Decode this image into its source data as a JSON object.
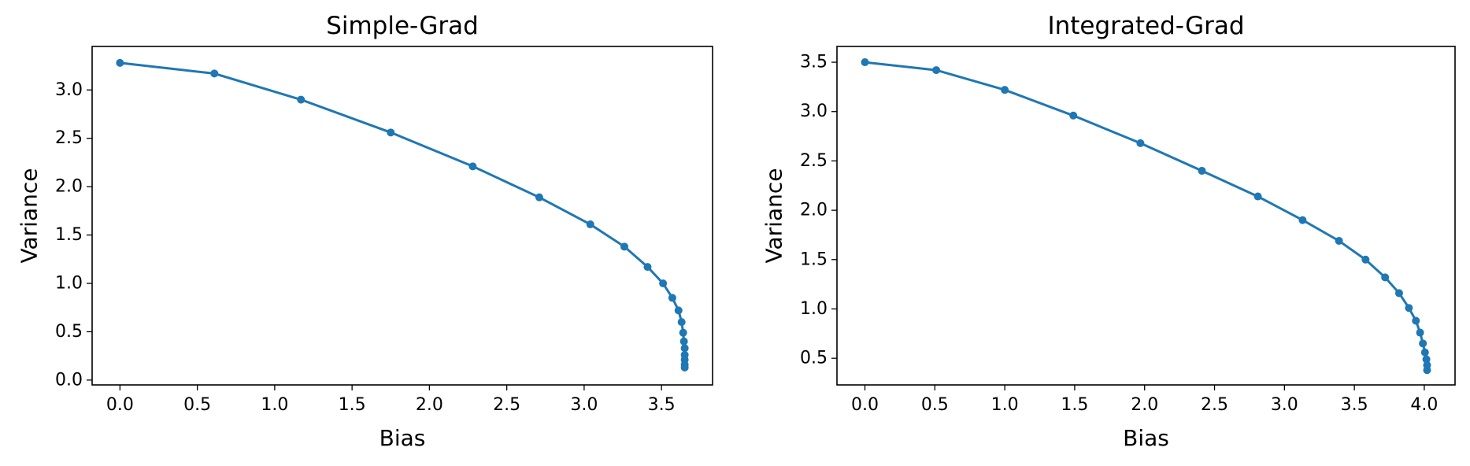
{
  "chart_data": [
    {
      "type": "line",
      "title": "Simple-Grad",
      "xlabel": "Bias",
      "ylabel": "Variance",
      "xlim": [
        -0.18,
        3.83
      ],
      "ylim": [
        -0.05,
        3.45
      ],
      "xticks": [
        0.0,
        0.5,
        1.0,
        1.5,
        2.0,
        2.5,
        3.0,
        3.5
      ],
      "xtick_labels": [
        "0.0",
        "0.5",
        "1.0",
        "1.5",
        "2.0",
        "2.5",
        "3.0",
        "3.5"
      ],
      "yticks": [
        0.0,
        0.5,
        1.0,
        1.5,
        2.0,
        2.5,
        3.0
      ],
      "ytick_labels": [
        "0.0",
        "0.5",
        "1.0",
        "1.5",
        "2.0",
        "2.5",
        "3.0"
      ],
      "grid": false,
      "color": "#1f77b4",
      "x": [
        0.0,
        0.61,
        1.17,
        1.75,
        2.28,
        2.71,
        3.04,
        3.26,
        3.41,
        3.51,
        3.57,
        3.61,
        3.63,
        3.64,
        3.645,
        3.65,
        3.65,
        3.65,
        3.65,
        3.65
      ],
      "y": [
        3.28,
        3.17,
        2.9,
        2.56,
        2.21,
        1.89,
        1.61,
        1.38,
        1.17,
        1.0,
        0.85,
        0.72,
        0.6,
        0.49,
        0.4,
        0.33,
        0.26,
        0.21,
        0.16,
        0.13
      ]
    },
    {
      "type": "line",
      "title": "Integrated-Grad",
      "xlabel": "Bias",
      "ylabel": "Variance",
      "xlim": [
        -0.2,
        4.22
      ],
      "ylim": [
        0.23,
        3.66
      ],
      "xticks": [
        0.0,
        0.5,
        1.0,
        1.5,
        2.0,
        2.5,
        3.0,
        3.5,
        4.0
      ],
      "xtick_labels": [
        "0.0",
        "0.5",
        "1.0",
        "1.5",
        "2.0",
        "2.5",
        "3.0",
        "3.5",
        "4.0"
      ],
      "yticks": [
        0.5,
        1.0,
        1.5,
        2.0,
        2.5,
        3.0,
        3.5
      ],
      "ytick_labels": [
        "0.5",
        "1.0",
        "1.5",
        "2.0",
        "2.5",
        "3.0",
        "3.5"
      ],
      "grid": false,
      "color": "#1f77b4",
      "x": [
        0.0,
        0.51,
        1.0,
        1.49,
        1.97,
        2.41,
        2.81,
        3.13,
        3.39,
        3.58,
        3.72,
        3.82,
        3.89,
        3.94,
        3.97,
        3.99,
        4.005,
        4.015,
        4.02,
        4.02
      ],
      "y": [
        3.5,
        3.42,
        3.22,
        2.96,
        2.68,
        2.4,
        2.14,
        1.9,
        1.69,
        1.5,
        1.32,
        1.16,
        1.01,
        0.88,
        0.76,
        0.65,
        0.56,
        0.49,
        0.43,
        0.38
      ]
    }
  ]
}
